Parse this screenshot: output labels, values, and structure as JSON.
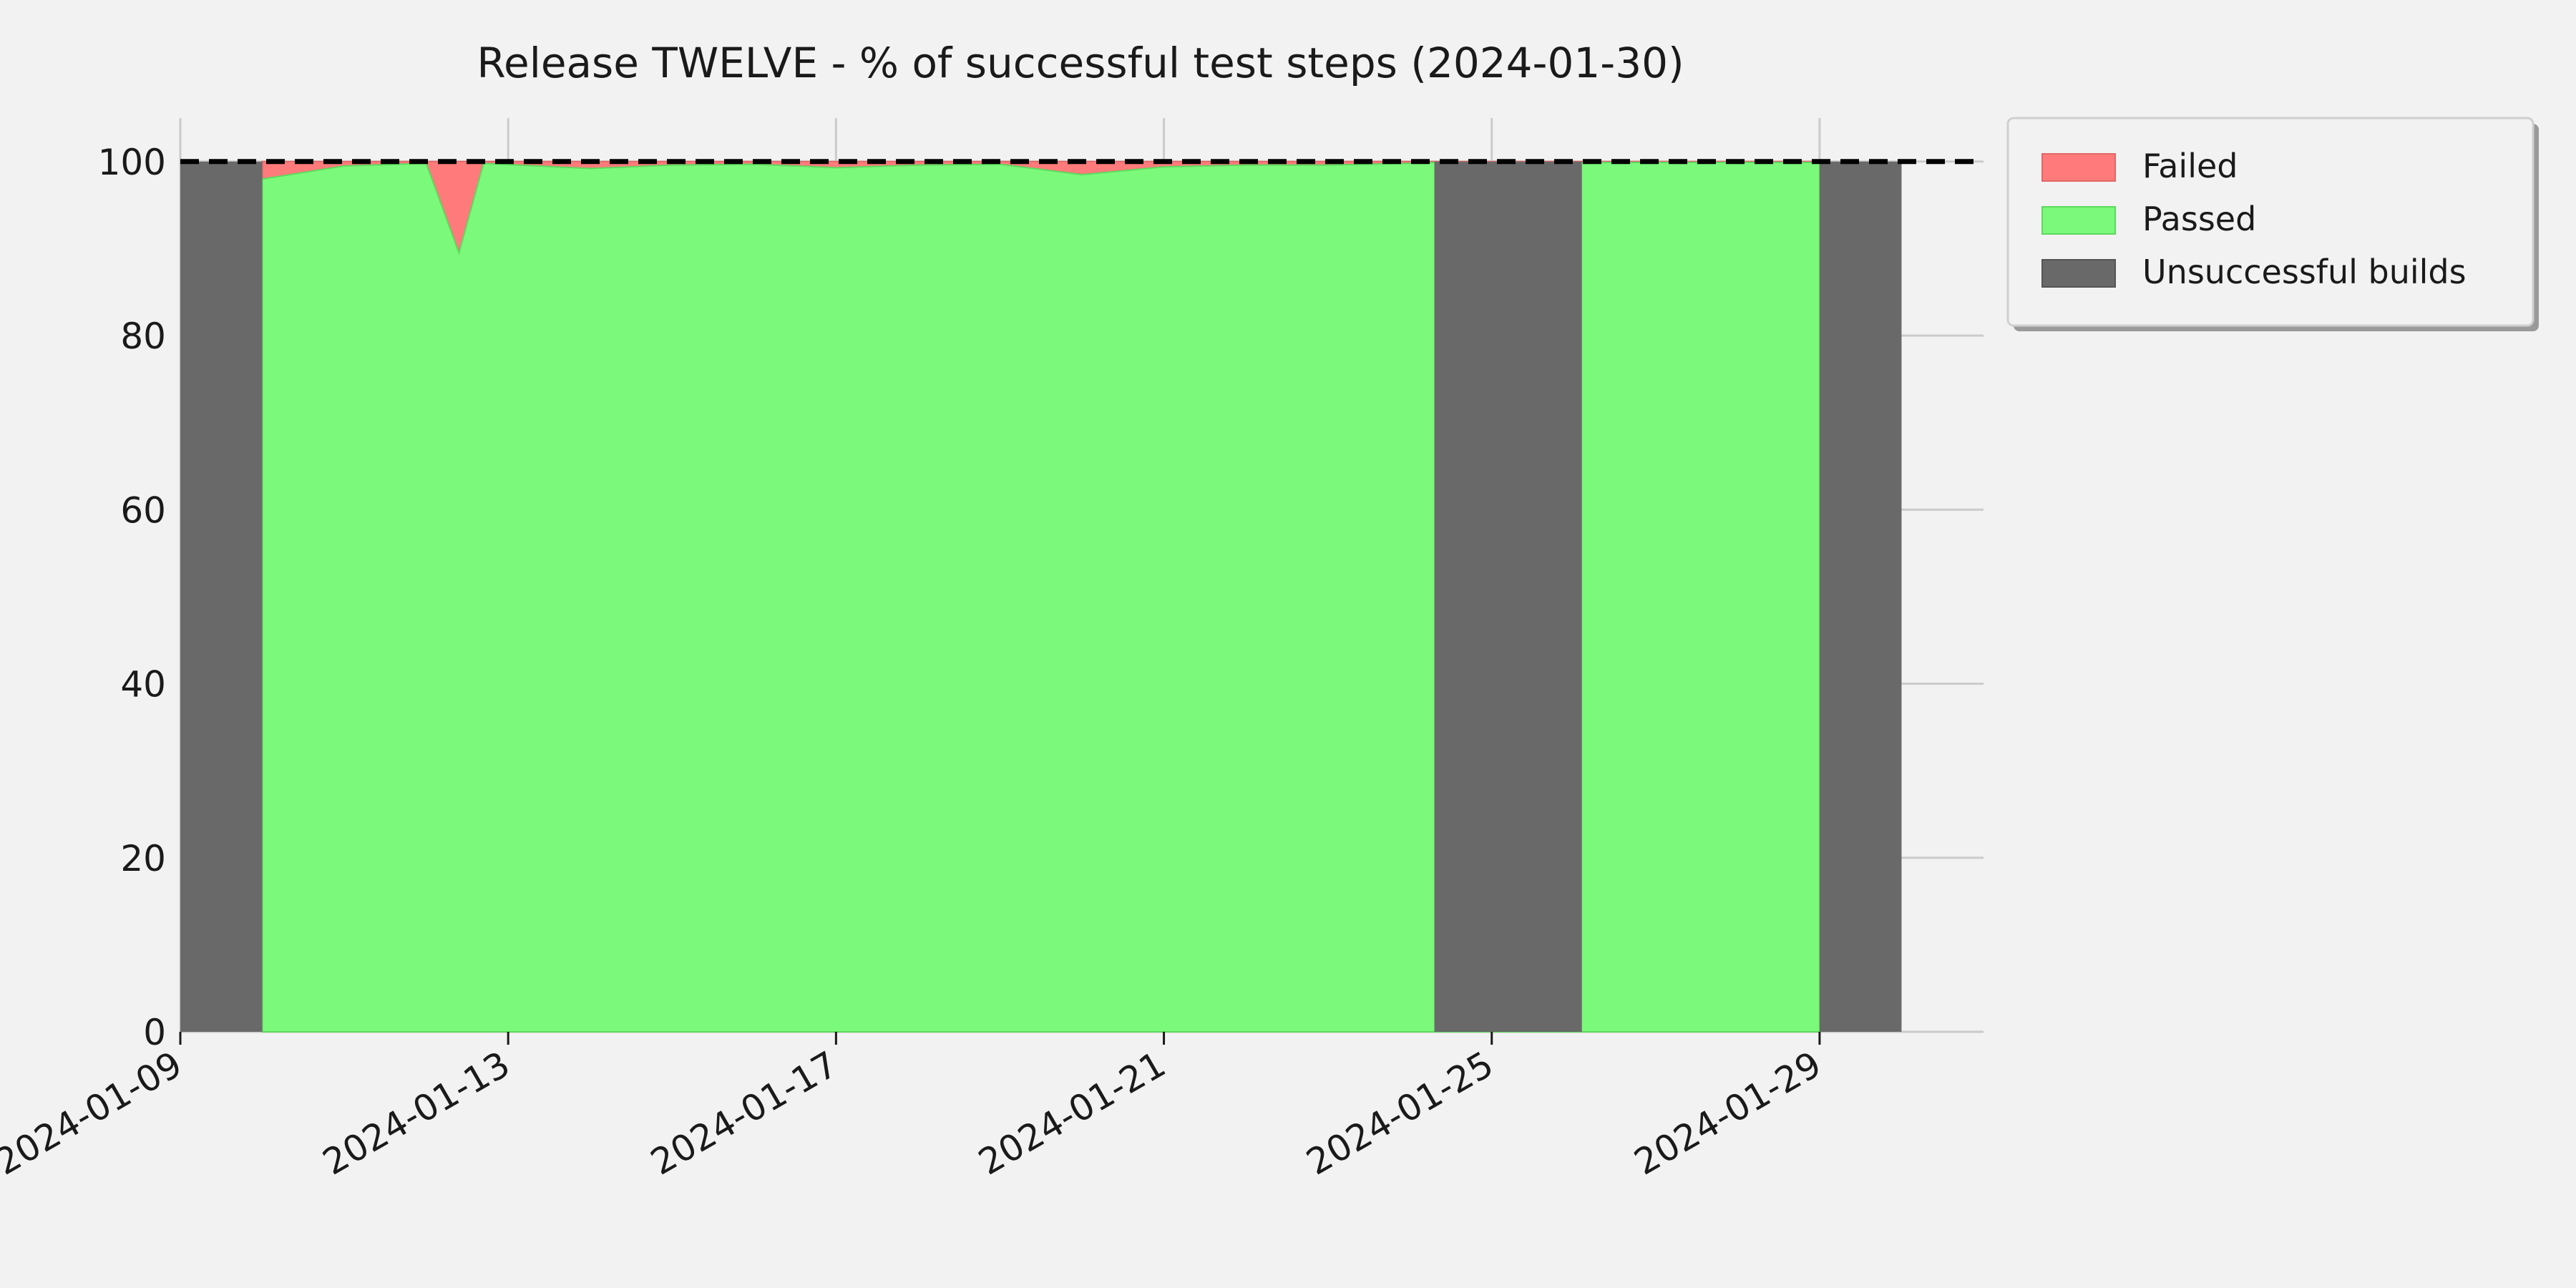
{
  "chart_data": {
    "type": "area",
    "title": "Release TWELVE - % of successful test steps (2024-01-30)",
    "xlabel": "",
    "ylabel": "",
    "x_axis": "date",
    "xlim": [
      "2024-01-09",
      "2024-01-31"
    ],
    "ylim": [
      0,
      105
    ],
    "yticks": [
      0,
      20,
      40,
      60,
      80,
      100
    ],
    "xticks": [
      "2024-01-09",
      "2024-01-13",
      "2024-01-17",
      "2024-01-21",
      "2024-01-25",
      "2024-01-29"
    ],
    "reference_line": {
      "y": 100,
      "style": "dashed",
      "color": "#000000"
    },
    "grid": true,
    "legend": {
      "placement": "outside-top-right"
    },
    "series": [
      {
        "name": "Failed",
        "color": "#ff7b7b",
        "stacked_on": "Passed"
      },
      {
        "name": "Passed",
        "color": "#7af97a",
        "points": [
          {
            "x": "2024-01-10",
            "y": 98.0
          },
          {
            "x": "2024-01-11",
            "y": 99.5
          },
          {
            "x": "2024-01-12",
            "y": 99.8
          },
          {
            "x": "2024-01-12.4",
            "y": 89.5
          },
          {
            "x": "2024-01-12.7",
            "y": 99.8
          },
          {
            "x": "2024-01-14",
            "y": 99.2
          },
          {
            "x": "2024-01-15",
            "y": 99.6
          },
          {
            "x": "2024-01-16",
            "y": 99.7
          },
          {
            "x": "2024-01-17",
            "y": 99.3
          },
          {
            "x": "2024-01-18",
            "y": 99.6
          },
          {
            "x": "2024-01-19",
            "y": 99.7
          },
          {
            "x": "2024-01-20",
            "y": 98.5
          },
          {
            "x": "2024-01-21",
            "y": 99.4
          },
          {
            "x": "2024-01-22",
            "y": 99.6
          },
          {
            "x": "2024-01-23",
            "y": 99.6
          },
          {
            "x": "2024-01-24",
            "y": 99.8
          },
          {
            "x": "2024-01-24.3",
            "y": 99.9
          },
          {
            "x": "2024-01-26.1",
            "y": 99.9
          },
          {
            "x": "2024-01-27",
            "y": 99.9
          },
          {
            "x": "2024-01-28",
            "y": 99.9
          },
          {
            "x": "2024-01-29",
            "y": 99.9
          }
        ]
      },
      {
        "name": "Unsuccessful builds",
        "color": "#696969",
        "intervals": [
          {
            "start": "2024-01-09",
            "end": "2024-01-10",
            "y": 100
          },
          {
            "start": "2024-01-24.3",
            "end": "2024-01-26.1",
            "y": 100
          },
          {
            "start": "2024-01-29",
            "end": "2024-01-30",
            "y": 100
          }
        ]
      }
    ]
  }
}
